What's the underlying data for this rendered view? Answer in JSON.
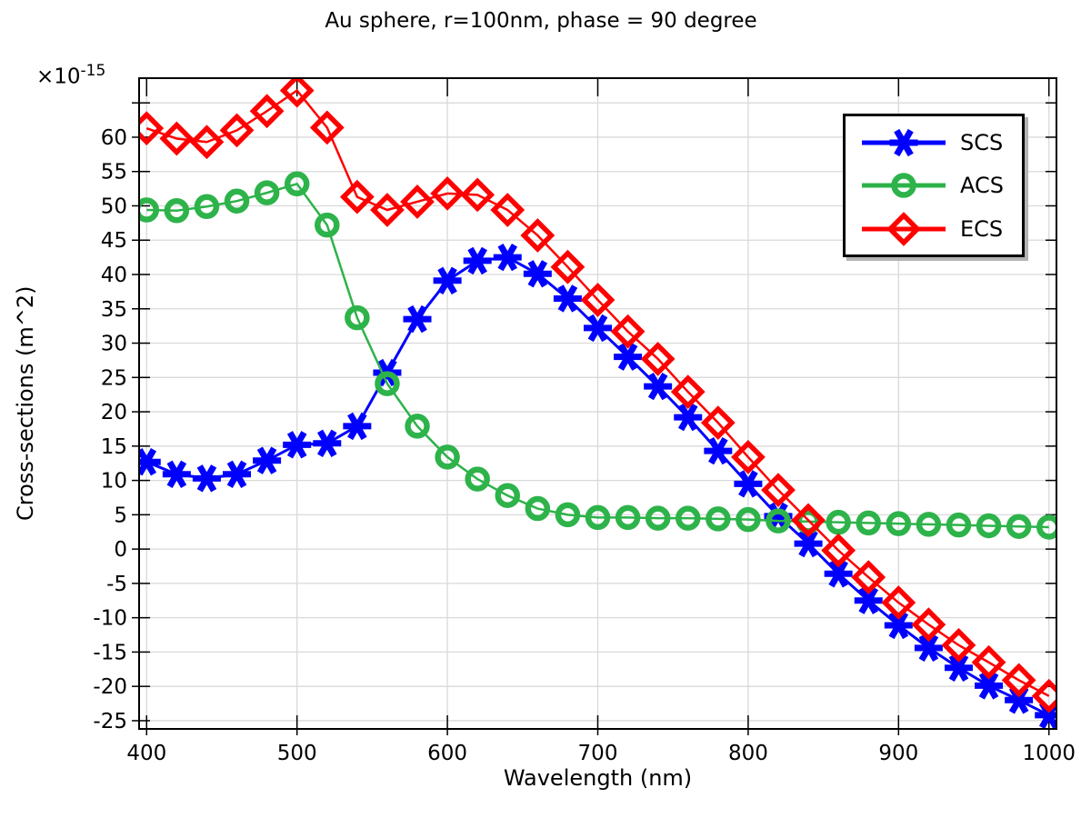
{
  "title": "Au sphere, r=100nm, phase = 90 degree",
  "y_axis_multiplier": {
    "times": "×10",
    "exp": "-15"
  },
  "chart_data": {
    "type": "line",
    "title": "Au sphere, r=100nm, phase = 90 degree",
    "xlabel": "Wavelength (nm)",
    "ylabel": "Cross-sections (m^2)",
    "grid": true,
    "grid_color": "#d9d9d9",
    "legend_position": "upper right",
    "xlim": [
      395,
      1005
    ],
    "ylim": [
      -26.2,
      68.6
    ],
    "xticks": [
      400,
      500,
      600,
      700,
      800,
      900,
      1000
    ],
    "ytick_labels": [
      -25,
      -20,
      -15,
      -10,
      -5,
      0,
      5,
      10,
      15,
      20,
      25,
      30,
      35,
      40,
      45,
      50,
      55,
      60
    ],
    "ygrid_ticks": [
      -25,
      -20,
      -15,
      -10,
      -5,
      0,
      5,
      10,
      15,
      20,
      25,
      30,
      35,
      40,
      45,
      50,
      55,
      60,
      65
    ],
    "x": [
      400,
      420,
      440,
      460,
      480,
      500,
      520,
      540,
      560,
      580,
      600,
      620,
      640,
      660,
      680,
      700,
      720,
      740,
      760,
      780,
      800,
      820,
      840,
      860,
      880,
      900,
      920,
      940,
      960,
      980,
      1000
    ],
    "series": [
      {
        "name": "SCS",
        "color": "#0000ff",
        "marker": "asterisk",
        "line_width": 3,
        "values": [
          12.7,
          10.9,
          10.3,
          10.9,
          12.9,
          15.2,
          15.4,
          17.9,
          25.7,
          33.5,
          39.1,
          42.0,
          42.5,
          40.1,
          36.5,
          32.2,
          28.0,
          23.7,
          19.2,
          14.3,
          9.5,
          4.8,
          0.8,
          -3.6,
          -7.5,
          -11.1,
          -14.4,
          -17.3,
          -19.9,
          -22.0,
          -24.2
        ]
      },
      {
        "name": "ACS",
        "color": "#2db34a",
        "marker": "circle",
        "line_width": 2.5,
        "values": [
          49.4,
          49.3,
          49.9,
          50.7,
          51.9,
          53.2,
          47.2,
          33.7,
          24.1,
          17.9,
          13.4,
          10.2,
          7.8,
          5.9,
          5.0,
          4.6,
          4.6,
          4.5,
          4.5,
          4.4,
          4.3,
          4.1,
          4.0,
          3.9,
          3.8,
          3.7,
          3.6,
          3.5,
          3.4,
          3.3,
          3.2
        ]
      },
      {
        "name": "ECS",
        "color": "#ff0000",
        "marker": "diamond",
        "line_width": 2.5,
        "values": [
          61.3,
          59.8,
          59.3,
          61.0,
          63.8,
          66.8,
          61.4,
          51.3,
          49.4,
          50.6,
          51.8,
          51.6,
          49.4,
          45.7,
          41.1,
          36.3,
          31.7,
          27.7,
          22.9,
          18.4,
          13.4,
          8.6,
          4.2,
          -0.2,
          -4.1,
          -7.8,
          -11.0,
          -14.0,
          -16.5,
          -19.1,
          -21.4
        ]
      }
    ]
  }
}
